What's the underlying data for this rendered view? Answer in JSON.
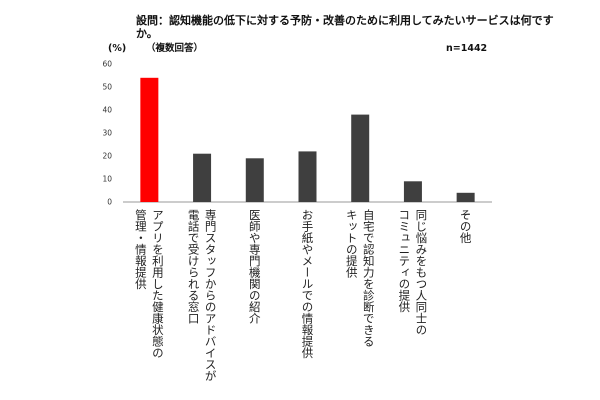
{
  "chart_data": {
    "type": "bar",
    "title_line1": "設問：認知機能の低下に対する予防・改善のために利用してみたいサービスは何です",
    "title_line2": "か。",
    "subtitle": "（複数回答）",
    "y_unit": "(%)",
    "sample_size": "n=1442",
    "ylim": [
      0,
      60
    ],
    "yticks": [
      0,
      10,
      20,
      30,
      40,
      50,
      60
    ],
    "grid": false,
    "highlight_color": "#ff0000",
    "bar_color": "#3f3f3f",
    "categories": [
      {
        "lines": [
          "アプリを利用した健康状態の",
          "管理・情報提供"
        ],
        "value": 54,
        "highlight": true
      },
      {
        "lines": [
          "専門スタッフからのアドバイスが",
          "電話で受けられる窓口"
        ],
        "value": 21,
        "highlight": false
      },
      {
        "lines": [
          "医師や専門機関の紹介"
        ],
        "value": 19,
        "highlight": false
      },
      {
        "lines": [
          "お手紙やメールでの情報提供"
        ],
        "value": 22,
        "highlight": false
      },
      {
        "lines": [
          "自宅で認知力を診断できる",
          "キットの提供"
        ],
        "value": 38,
        "highlight": false
      },
      {
        "lines": [
          "同じ悩みをもつ人同士の",
          "コミュニティの提供"
        ],
        "value": 9,
        "highlight": false
      },
      {
        "lines": [
          "その他"
        ],
        "value": 4,
        "highlight": false
      }
    ]
  }
}
